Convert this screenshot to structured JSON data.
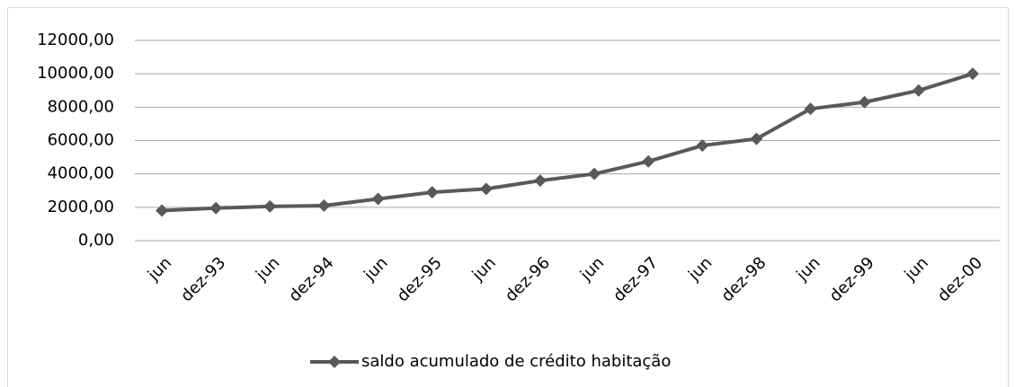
{
  "chart_data": {
    "type": "line",
    "categories": [
      "jun",
      "dez-93",
      "jun",
      "dez-94",
      "jun",
      "dez-95",
      "jun",
      "dez-96",
      "jun",
      "dez-97",
      "jun",
      "dez-98",
      "jun",
      "dez-99",
      "jun",
      "dez-00"
    ],
    "series": [
      {
        "name": "saldo acumulado de crédito habitação",
        "color": "#595959",
        "values": [
          1800,
          1950,
          2050,
          2100,
          2500,
          2900,
          3100,
          3600,
          4000,
          4750,
          5700,
          6100,
          7900,
          8300,
          9000,
          10000
        ]
      }
    ],
    "ylim": [
      0,
      12000
    ],
    "yticks": [
      {
        "value": 0,
        "label": "0,00"
      },
      {
        "value": 2000,
        "label": "2000,00"
      },
      {
        "value": 4000,
        "label": "4000,00"
      },
      {
        "value": 6000,
        "label": "6000,00"
      },
      {
        "value": 8000,
        "label": "8000,00"
      },
      {
        "value": 10000,
        "label": "10000,00"
      },
      {
        "value": 12000,
        "label": "12000,00"
      }
    ],
    "grid": true,
    "legend": "bottom"
  }
}
